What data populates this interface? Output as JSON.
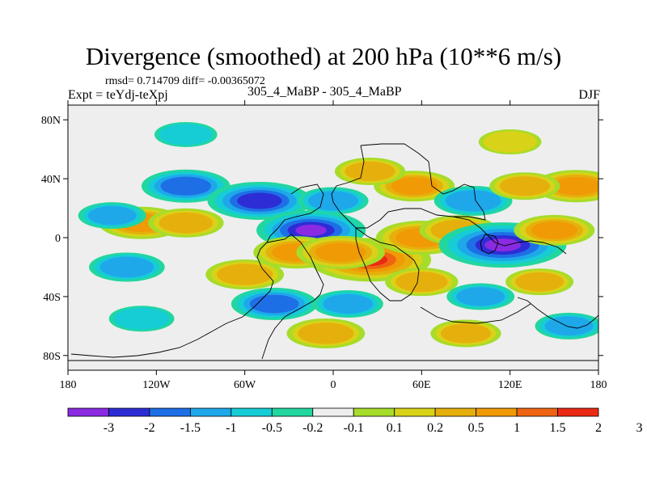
{
  "header": {
    "title": "Divergence (smoothed) at 200 hPa (10**6 m/s)",
    "stats": "rmsd= 0.714709 diff= -0.00365072",
    "expt": "Expt = teYdj-teXpj",
    "comparison": "305_4_MaBP - 305_4_MaBP",
    "season": "DJF"
  },
  "chart_data": {
    "type": "heatmap",
    "title": "Divergence (smoothed) at 200 hPa (10**6 m/s)",
    "xlabel": "",
    "ylabel": "",
    "xlim": [
      -180,
      180
    ],
    "ylim": [
      -90,
      90
    ],
    "x_ticks": [
      {
        "value": -180,
        "label": "180"
      },
      {
        "value": -120,
        "label": "120W"
      },
      {
        "value": -60,
        "label": "60W"
      },
      {
        "value": 0,
        "label": "0"
      },
      {
        "value": 60,
        "label": "60E"
      },
      {
        "value": 120,
        "label": "120E"
      },
      {
        "value": 180,
        "label": "180"
      }
    ],
    "y_ticks": [
      {
        "value": 80,
        "label": "80N"
      },
      {
        "value": 40,
        "label": "40N"
      },
      {
        "value": 0,
        "label": "0"
      },
      {
        "value": -40,
        "label": "40S"
      },
      {
        "value": -80,
        "label": "80S"
      }
    ],
    "colorbar": {
      "labels": [
        "-3",
        "-2",
        "-1.5",
        "-1",
        "-0.5",
        "-0.2",
        "-0.1",
        "0.1",
        "0.2",
        "0.5",
        "1",
        "1.5",
        "2",
        "3"
      ],
      "colors": [
        "#8a2be2",
        "#2d2dd6",
        "#1e6fe6",
        "#1ea8ea",
        "#16cdd6",
        "#22d6a0",
        "#eeeeee",
        "#a6dc2a",
        "#d8d218",
        "#e6b00c",
        "#f09a06",
        "#ee6410",
        "#ea2a14"
      ]
    },
    "anomalies": [
      {
        "lon": -130,
        "lat": 10,
        "value": 1.2
      },
      {
        "lon": -100,
        "lat": 10,
        "value": 0.8
      },
      {
        "lon": -150,
        "lat": 15,
        "value": -0.5
      },
      {
        "lon": -100,
        "lat": 35,
        "value": -1.3
      },
      {
        "lon": -50,
        "lat": 25,
        "value": -1.9
      },
      {
        "lon": -15,
        "lat": 5,
        "value": -2.1
      },
      {
        "lon": -25,
        "lat": -10,
        "value": 1.2
      },
      {
        "lon": 25,
        "lat": -15,
        "value": 2.6
      },
      {
        "lon": 5,
        "lat": -10,
        "value": 1.3
      },
      {
        "lon": 60,
        "lat": 0,
        "value": 1.4
      },
      {
        "lon": 85,
        "lat": 5,
        "value": 0.9
      },
      {
        "lon": 115,
        "lat": -5,
        "value": -2.8
      },
      {
        "lon": 150,
        "lat": 5,
        "value": 1.0
      },
      {
        "lon": 55,
        "lat": 35,
        "value": 1.0
      },
      {
        "lon": 25,
        "lat": 45,
        "value": 0.6
      },
      {
        "lon": 95,
        "lat": 25,
        "value": -0.9
      },
      {
        "lon": 165,
        "lat": 35,
        "value": 1.2
      },
      {
        "lon": 130,
        "lat": 35,
        "value": 0.6
      },
      {
        "lon": 0,
        "lat": 25,
        "value": -0.6
      },
      {
        "lon": -60,
        "lat": -25,
        "value": 0.9
      },
      {
        "lon": -140,
        "lat": -20,
        "value": -0.8
      },
      {
        "lon": -40,
        "lat": -45,
        "value": -1.2
      },
      {
        "lon": 10,
        "lat": -45,
        "value": -0.6
      },
      {
        "lon": 60,
        "lat": -30,
        "value": 0.7
      },
      {
        "lon": 140,
        "lat": -30,
        "value": 0.5
      },
      {
        "lon": 100,
        "lat": -40,
        "value": -0.5
      },
      {
        "lon": -5,
        "lat": -65,
        "value": 0.9
      },
      {
        "lon": 90,
        "lat": -65,
        "value": 0.6
      },
      {
        "lon": 160,
        "lat": -60,
        "value": -0.5
      },
      {
        "lon": -130,
        "lat": -55,
        "value": -0.4
      },
      {
        "lon": -100,
        "lat": 70,
        "value": -0.3
      },
      {
        "lon": 120,
        "lat": 65,
        "value": 0.3
      }
    ]
  }
}
